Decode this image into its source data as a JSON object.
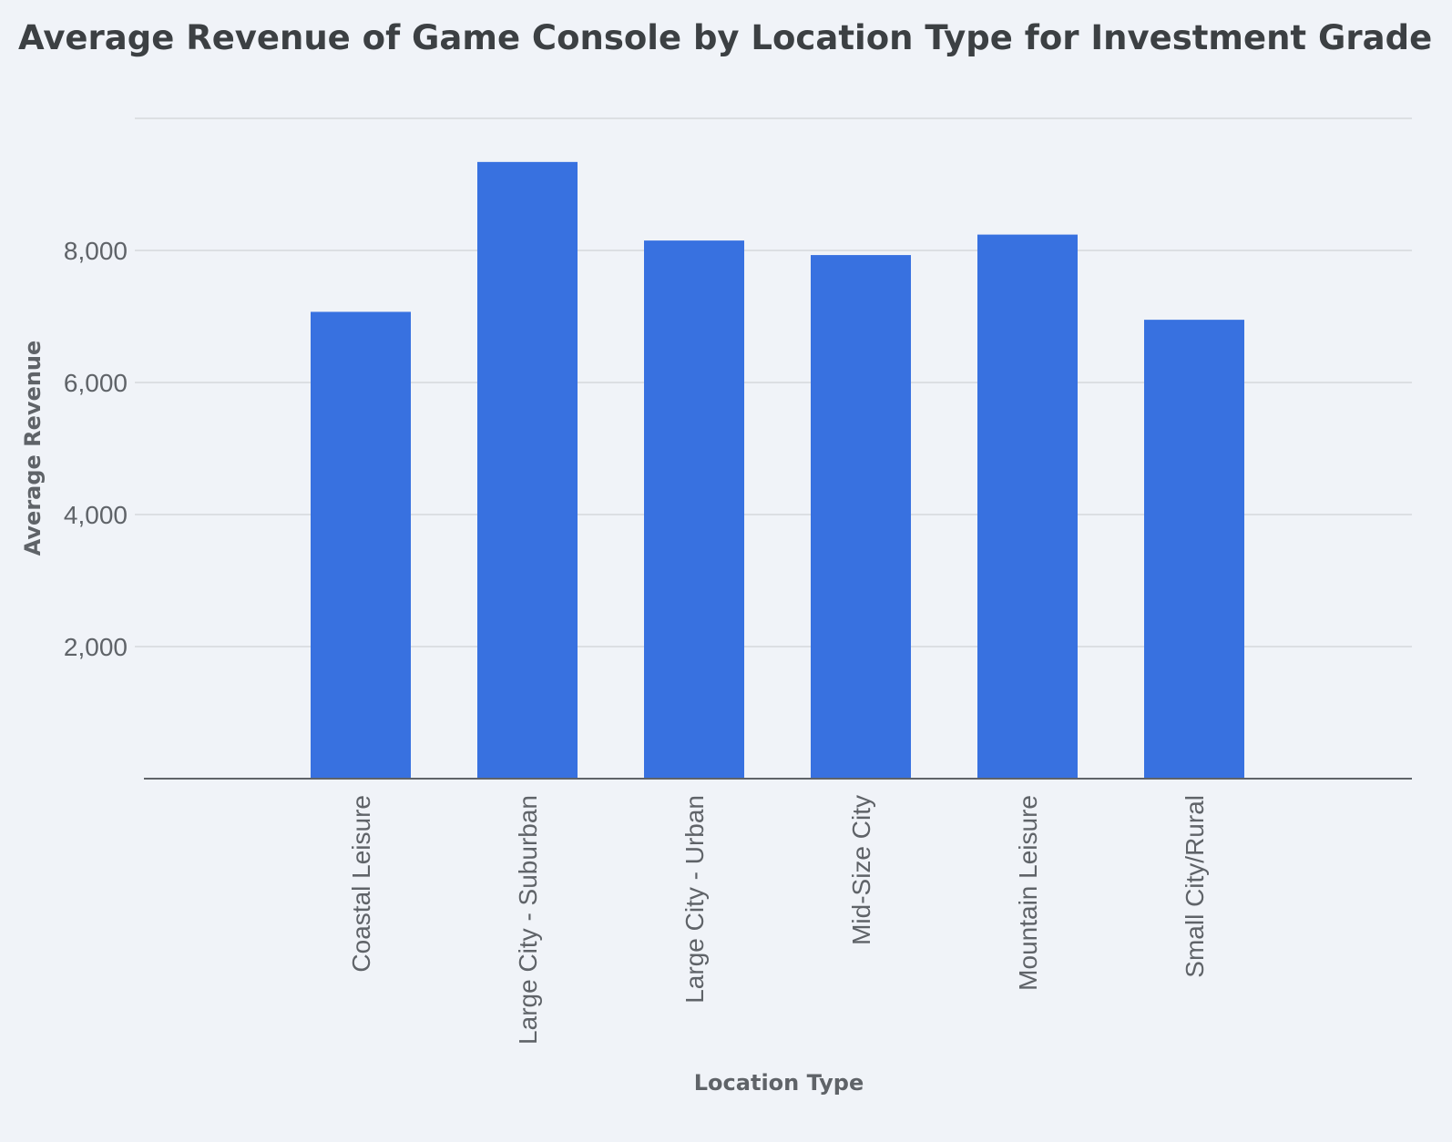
{
  "chart_data": {
    "type": "bar",
    "title": "Average Revenue of Game Console by Location Type for Investment Grade",
    "xlabel": "Location Type",
    "ylabel": "Average Revenue",
    "categories": [
      "Coastal Leisure",
      "Large City - Suburban",
      "Large City - Urban",
      "Mid-Size City",
      "Mountain Leisure",
      "Small City/Rural"
    ],
    "values": [
      7070,
      9340,
      8150,
      7930,
      8240,
      6950
    ],
    "yticks": [
      2000,
      4000,
      6000,
      8000
    ],
    "ytick_labels": [
      "2,000",
      "4,000",
      "6,000",
      "8,000"
    ],
    "ylim": [
      0,
      10000
    ],
    "grid": true,
    "legend": "none",
    "colors": {
      "bar": "#3871e0",
      "grid": "#dcdfe3",
      "axis": "#5f6368",
      "text": "#5f6368",
      "title": "#3c4043",
      "background": "#f0f3f8"
    }
  }
}
